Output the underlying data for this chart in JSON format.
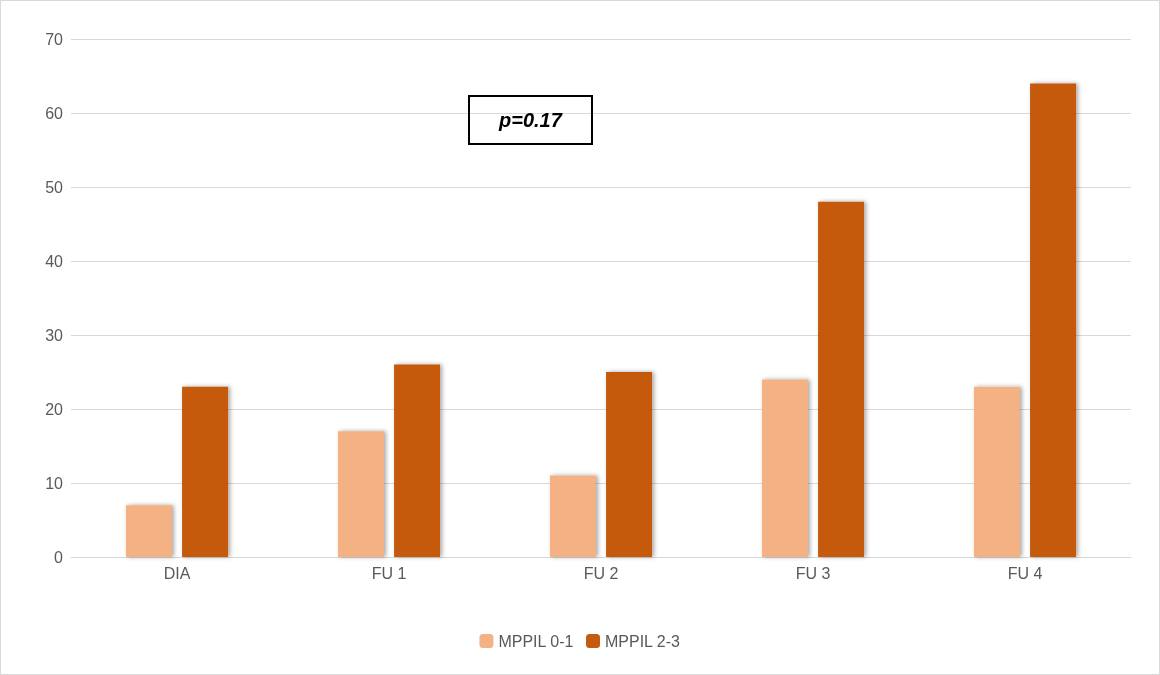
{
  "chart_data": {
    "type": "bar",
    "categories": [
      "DIA",
      "FU 1",
      "FU 2",
      "FU 3",
      "FU 4"
    ],
    "series": [
      {
        "name": "MPPIL 0-1",
        "color": "#f4b183",
        "values": [
          7,
          17,
          11,
          24,
          23
        ]
      },
      {
        "name": "MPPIL 2-3",
        "color": "#c55a11",
        "values": [
          23,
          26,
          25,
          48,
          64
        ]
      }
    ],
    "ylim": [
      0,
      70
    ],
    "yticks": [
      0,
      10,
      20,
      30,
      40,
      50,
      60,
      70
    ],
    "grid": "y",
    "legend": "bottom",
    "annotations": [
      "p=0.17"
    ]
  }
}
